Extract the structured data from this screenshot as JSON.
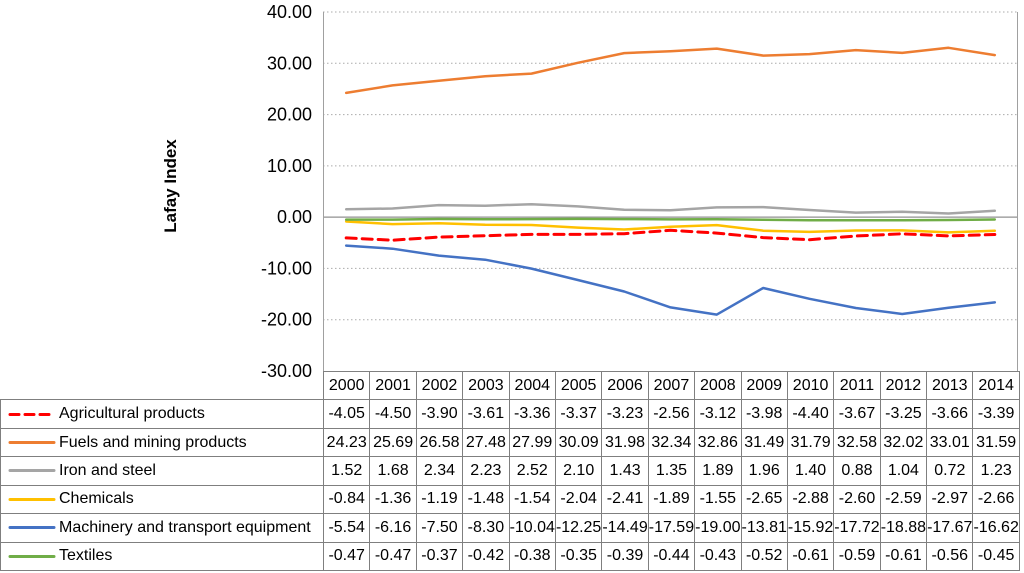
{
  "chart_data": {
    "type": "line",
    "title": "",
    "xlabel": "",
    "ylabel": "Lafay Index",
    "ylim": [
      -30,
      40
    ],
    "ytick_step": 10,
    "ytick_format_decimals": 2,
    "grid": "horizontal dotted gridlines, solid zero line, plot area bordered left and right",
    "legend_position": "left column of data table below chart",
    "categories": [
      "2000",
      "2001",
      "2002",
      "2003",
      "2004",
      "2005",
      "2006",
      "2007",
      "2008",
      "2009",
      "2010",
      "2011",
      "2012",
      "2013",
      "2014"
    ],
    "series": [
      {
        "name": "Agricultural products",
        "color": "#FF0000",
        "style": "dashed",
        "values": [
          -4.05,
          -4.5,
          -3.9,
          -3.61,
          -3.36,
          -3.37,
          -3.23,
          -2.56,
          -3.12,
          -3.98,
          -4.4,
          -3.67,
          -3.25,
          -3.66,
          -3.39
        ]
      },
      {
        "name": "Fuels and mining products",
        "color": "#ED7D31",
        "style": "solid",
        "values": [
          24.23,
          25.69,
          26.58,
          27.48,
          27.99,
          30.09,
          31.98,
          32.34,
          32.86,
          31.49,
          31.79,
          32.58,
          32.02,
          33.01,
          31.59
        ]
      },
      {
        "name": "Iron and steel",
        "color": "#A5A5A5",
        "style": "solid",
        "values": [
          1.52,
          1.68,
          2.34,
          2.23,
          2.52,
          2.1,
          1.43,
          1.35,
          1.89,
          1.96,
          1.4,
          0.88,
          1.04,
          0.72,
          1.23
        ]
      },
      {
        "name": "Chemicals",
        "color": "#FFC000",
        "style": "solid",
        "values": [
          -0.84,
          -1.36,
          -1.19,
          -1.48,
          -1.54,
          -2.04,
          -2.41,
          -1.89,
          -1.55,
          -2.65,
          -2.88,
          -2.6,
          -2.59,
          -2.97,
          -2.66
        ]
      },
      {
        "name": "Machinery and transport equipment",
        "color": "#4472C4",
        "style": "solid",
        "values": [
          -5.54,
          -6.16,
          -7.5,
          -8.3,
          -10.04,
          -12.25,
          -14.49,
          -17.59,
          -19.0,
          -13.81,
          -15.92,
          -17.72,
          -18.88,
          -17.67,
          -16.62
        ]
      },
      {
        "name": "Textiles",
        "color": "#70AD47",
        "style": "solid",
        "values": [
          -0.47,
          -0.47,
          -0.37,
          -0.42,
          -0.38,
          -0.35,
          -0.39,
          -0.44,
          -0.43,
          -0.52,
          -0.61,
          -0.59,
          -0.61,
          -0.56,
          -0.45
        ]
      }
    ],
    "table_value_decimals": 2,
    "colors": {
      "gridline": "#ABABAB",
      "zero_line": "#909090",
      "plot_border": "#A0A0A0",
      "table_border": "#7f7f7f",
      "text": "#000000"
    }
  }
}
